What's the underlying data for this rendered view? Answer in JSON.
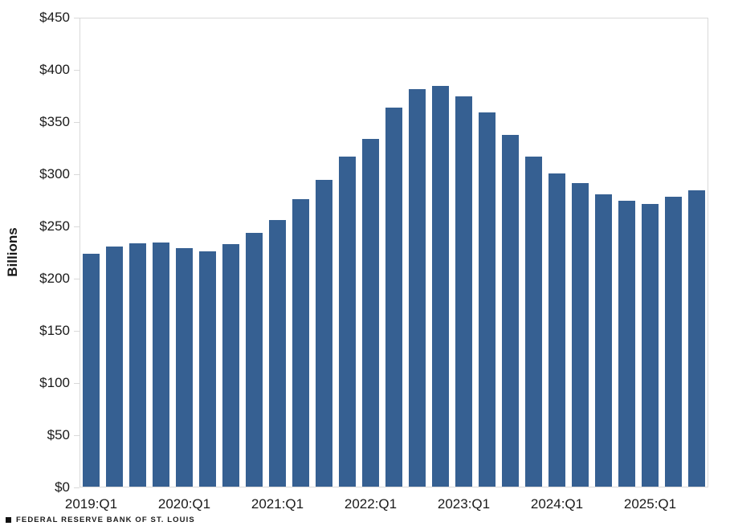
{
  "chart_data": {
    "type": "bar",
    "title": "",
    "xlabel": "",
    "ylabel": "Billions",
    "ylim": [
      0,
      450
    ],
    "grid": "off",
    "legend": "none",
    "bar_color": "#366092",
    "axis_color": "#d9d9d9",
    "label_color": "#1a1a1a",
    "y_ticks": [
      {
        "value": 0,
        "label": "$0"
      },
      {
        "value": 50,
        "label": "$50"
      },
      {
        "value": 100,
        "label": "$100"
      },
      {
        "value": 150,
        "label": "$150"
      },
      {
        "value": 200,
        "label": "$200"
      },
      {
        "value": 250,
        "label": "$250"
      },
      {
        "value": 300,
        "label": "$300"
      },
      {
        "value": 350,
        "label": "$350"
      },
      {
        "value": 400,
        "label": "$400"
      },
      {
        "value": 450,
        "label": "$450"
      }
    ],
    "x_ticks": [
      {
        "index": 0,
        "label": "2019:Q1"
      },
      {
        "index": 4,
        "label": "2020:Q1"
      },
      {
        "index": 8,
        "label": "2021:Q1"
      },
      {
        "index": 12,
        "label": "2022:Q1"
      },
      {
        "index": 16,
        "label": "2023:Q1"
      },
      {
        "index": 20,
        "label": "2024:Q1"
      },
      {
        "index": 24,
        "label": "2025:Q1"
      }
    ],
    "categories": [
      "2019:Q1",
      "2019:Q2",
      "2019:Q3",
      "2019:Q4",
      "2020:Q1",
      "2020:Q2",
      "2020:Q3",
      "2020:Q4",
      "2021:Q1",
      "2021:Q2",
      "2021:Q3",
      "2021:Q4",
      "2022:Q1",
      "2022:Q2",
      "2022:Q3",
      "2022:Q4",
      "2023:Q1",
      "2023:Q2",
      "2023:Q3",
      "2023:Q4",
      "2024:Q1",
      "2024:Q2",
      "2024:Q3",
      "2024:Q4",
      "2025:Q1",
      "2025:Q2",
      "2025:Q3"
    ],
    "values": [
      224,
      231,
      234,
      235,
      229,
      226,
      233,
      244,
      256,
      276,
      295,
      317,
      334,
      364,
      382,
      385,
      375,
      360,
      338,
      317,
      301,
      292,
      281,
      275,
      272,
      279,
      285
    ]
  },
  "footer": {
    "marker": "square",
    "source_label": "FEDERAL RESERVE BANK OF ST. LOUIS"
  }
}
